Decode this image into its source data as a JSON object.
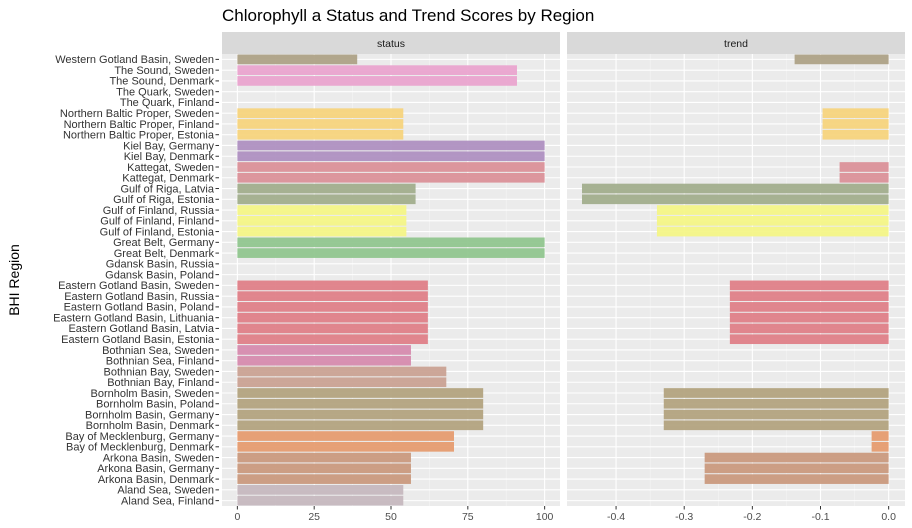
{
  "chart_data": {
    "type": "bar",
    "orientation": "horizontal",
    "title": "Chlorophyll a Status and Trend Scores by Region",
    "xlabel": "",
    "ylabel": "BHI Region",
    "grid": true,
    "legend": "none",
    "categories": [
      "Western Gotland Basin, Sweden",
      "The Sound, Sweden",
      "The Sound, Denmark",
      "The Quark, Sweden",
      "The Quark, Finland",
      "Northern Baltic Proper, Sweden",
      "Northern Baltic Proper, Finland",
      "Northern Baltic Proper, Estonia",
      "Kiel Bay, Germany",
      "Kiel Bay, Denmark",
      "Kattegat, Sweden",
      "Kattegat, Denmark",
      "Gulf of Riga, Latvia",
      "Gulf of Riga, Estonia",
      "Gulf of Finland, Russia",
      "Gulf of Finland, Finland",
      "Gulf of Finland, Estonia",
      "Great Belt, Germany",
      "Great Belt, Denmark",
      "Gdansk Basin, Russia",
      "Gdansk Basin, Poland",
      "Eastern Gotland Basin, Sweden",
      "Eastern Gotland Basin, Russia",
      "Eastern Gotland Basin, Poland",
      "Eastern Gotland Basin, Lithuania",
      "Eastern Gotland Basin, Latvia",
      "Eastern Gotland Basin, Estonia",
      "Bothnian Sea, Sweden",
      "Bothnian Sea, Finland",
      "Bothnian Bay, Sweden",
      "Bothnian Bay, Finland",
      "Bornholm Basin, Sweden",
      "Bornholm Basin, Poland",
      "Bornholm Basin, Germany",
      "Bornholm Basin, Denmark",
      "Bay of Mecklenburg, Germany",
      "Bay of Mecklenburg, Denmark",
      "Arkona Basin, Sweden",
      "Arkona Basin, Germany",
      "Arkona Basin, Denmark",
      "Aland Sea, Sweden",
      "Aland Sea, Finland"
    ],
    "colors": [
      "#ab9f83",
      "#e9a2cd",
      "#e9a2cd",
      "#b3d89a",
      "#b3d89a",
      "#f6d27a",
      "#f6d27a",
      "#f6d27a",
      "#ad8dbf",
      "#ad8dbf",
      "#da8e96",
      "#da8e96",
      "#a0ab8a",
      "#a0ab8a",
      "#f4f583",
      "#f4f583",
      "#f4f583",
      "#8ec48c",
      "#8ec48c",
      "#cccccc",
      "#cccccc",
      "#de7c84",
      "#de7c84",
      "#de7c84",
      "#de7c84",
      "#de7c84",
      "#de7c84",
      "#d588ab",
      "#d588ab",
      "#c9a090",
      "#c9a090",
      "#b1a17c",
      "#b1a17c",
      "#b1a17c",
      "#b1a17c",
      "#e5996b",
      "#e5996b",
      "#c9977b",
      "#c9977b",
      "#c9977b",
      "#c4b6bd",
      "#c4b6bd"
    ],
    "panels": [
      {
        "name": "status",
        "xlim": [
          -5,
          105
        ],
        "xticks": [
          0,
          25,
          50,
          75,
          100
        ],
        "xtick_labels": [
          "0",
          "25",
          "50",
          "75",
          "100"
        ],
        "values": [
          39,
          91,
          91,
          null,
          null,
          54,
          54,
          54,
          100,
          100,
          100,
          100,
          58,
          58,
          55,
          55,
          55,
          100,
          100,
          null,
          null,
          62,
          62,
          62,
          62,
          62,
          62,
          56.5,
          56.5,
          68,
          68,
          80,
          80,
          80,
          80,
          70.5,
          70.5,
          56.5,
          56.5,
          56.5,
          54,
          54
        ]
      },
      {
        "name": "trend",
        "xlim": [
          -0.472,
          0.024
        ],
        "xticks": [
          -0.4,
          -0.3,
          -0.2,
          -0.1,
          0.0
        ],
        "xtick_labels": [
          "-0.4",
          "-0.3",
          "-0.2",
          "-0.1",
          "0.0"
        ],
        "values": [
          -0.138,
          null,
          null,
          null,
          null,
          -0.097,
          -0.097,
          -0.097,
          null,
          null,
          -0.072,
          -0.072,
          -0.45,
          -0.45,
          -0.34,
          -0.34,
          -0.34,
          null,
          null,
          null,
          null,
          -0.233,
          -0.233,
          -0.233,
          -0.233,
          -0.233,
          -0.233,
          null,
          null,
          null,
          null,
          -0.33,
          -0.33,
          -0.33,
          -0.33,
          -0.025,
          -0.025,
          -0.27,
          -0.27,
          -0.27,
          null,
          null
        ]
      }
    ]
  }
}
